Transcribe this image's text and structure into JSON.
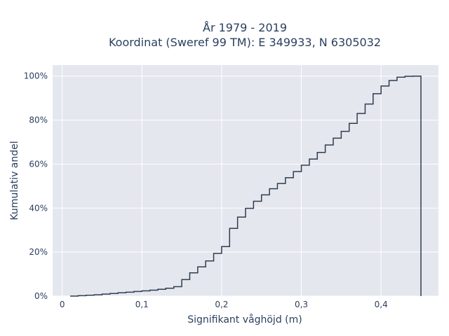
{
  "chart_data": {
    "type": "line",
    "subtype": "cumulative-step",
    "title_line1": "År 1979 - 2019",
    "title_line2": "Koordinat (Sweref 99 TM): E 349933, N 6305032",
    "xlabel": "Signifikant våghöjd (m)",
    "ylabel": "Kumulativ andel",
    "xlim": [
      -0.012,
      0.472
    ],
    "ylim": [
      0,
      1.05
    ],
    "x_ticks": [
      0,
      0.1,
      0.2,
      0.3,
      0.4
    ],
    "x_tick_labels": [
      "0",
      "0,1",
      "0,2",
      "0,3",
      "0,4"
    ],
    "y_ticks": [
      0,
      0.2,
      0.4,
      0.6,
      0.8,
      1.0
    ],
    "y_tick_labels": [
      "0%",
      "20%",
      "40%",
      "60%",
      "80%",
      "100%"
    ],
    "grid": true,
    "line_color": "#2f3e4e",
    "plot_bg": "#e5e7ef",
    "series": [
      {
        "x": [
          0.01,
          0.02,
          0.03,
          0.04,
          0.05,
          0.06,
          0.07,
          0.08,
          0.09,
          0.1,
          0.11,
          0.12,
          0.13,
          0.14,
          0.15,
          0.16,
          0.17,
          0.18,
          0.19,
          0.2,
          0.21,
          0.22,
          0.23,
          0.24,
          0.25,
          0.26,
          0.27,
          0.28,
          0.29,
          0.3,
          0.31,
          0.32,
          0.33,
          0.34,
          0.35,
          0.36,
          0.37,
          0.38,
          0.39,
          0.4,
          0.41,
          0.42,
          0.43,
          0.44,
          0.45
        ],
        "y": [
          0.0,
          0.002,
          0.004,
          0.006,
          0.009,
          0.012,
          0.015,
          0.018,
          0.021,
          0.024,
          0.027,
          0.031,
          0.036,
          0.043,
          0.075,
          0.106,
          0.133,
          0.16,
          0.194,
          0.225,
          0.308,
          0.359,
          0.399,
          0.431,
          0.46,
          0.488,
          0.512,
          0.538,
          0.566,
          0.595,
          0.623,
          0.653,
          0.687,
          0.718,
          0.749,
          0.785,
          0.83,
          0.873,
          0.92,
          0.955,
          0.98,
          0.995,
          0.999,
          1.0,
          0.0
        ]
      }
    ]
  }
}
